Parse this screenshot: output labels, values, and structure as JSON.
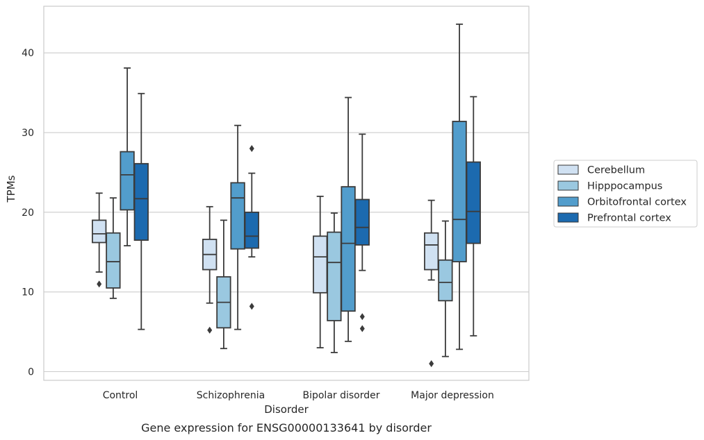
{
  "chart_data": {
    "type": "box",
    "xlabel": "Disorder",
    "ylabel": "TPMs",
    "caption": "Gene expression for ENSG00000133641 by disorder",
    "ylim": [
      -1,
      46
    ],
    "yticks": [
      0,
      10,
      20,
      30,
      40
    ],
    "grid": "horizontal",
    "legend_position": "right",
    "categories": [
      "Control",
      "Schizophrenia",
      "Bipolar disorder",
      "Major depression"
    ],
    "series": [
      {
        "name": "Cerebellum",
        "color": "#d0e1f2",
        "boxes": [
          {
            "whisker_low": 12.5,
            "q1": 16.2,
            "median": 17.3,
            "q3": 19.0,
            "whisker_high": 22.4,
            "outliers": [
              11.0
            ]
          },
          {
            "whisker_low": 8.6,
            "q1": 12.8,
            "median": 14.7,
            "q3": 16.6,
            "whisker_high": 20.7,
            "outliers": [
              5.2
            ]
          },
          {
            "whisker_low": 3.0,
            "q1": 9.9,
            "median": 14.4,
            "q3": 17.0,
            "whisker_high": 22.0,
            "outliers": []
          },
          {
            "whisker_low": 11.5,
            "q1": 12.8,
            "median": 15.9,
            "q3": 17.4,
            "whisker_high": 21.5,
            "outliers": [
              1.0
            ]
          }
        ]
      },
      {
        "name": "Hipppocampus",
        "color": "#9ac8e0",
        "boxes": [
          {
            "whisker_low": 9.2,
            "q1": 10.5,
            "median": 13.8,
            "q3": 17.4,
            "whisker_high": 21.8,
            "outliers": []
          },
          {
            "whisker_low": 2.9,
            "q1": 5.5,
            "median": 8.7,
            "q3": 11.9,
            "whisker_high": 19.0,
            "outliers": []
          },
          {
            "whisker_low": 2.4,
            "q1": 6.4,
            "median": 13.7,
            "q3": 17.5,
            "whisker_high": 19.9,
            "outliers": []
          },
          {
            "whisker_low": 1.9,
            "q1": 8.9,
            "median": 11.2,
            "q3": 14.0,
            "whisker_high": 18.9,
            "outliers": []
          }
        ]
      },
      {
        "name": "Orbitofrontal cortex",
        "color": "#529dcc",
        "boxes": [
          {
            "whisker_low": 15.8,
            "q1": 20.3,
            "median": 24.7,
            "q3": 27.6,
            "whisker_high": 38.1,
            "outliers": []
          },
          {
            "whisker_low": 5.3,
            "q1": 15.4,
            "median": 21.8,
            "q3": 23.7,
            "whisker_high": 30.9,
            "outliers": []
          },
          {
            "whisker_low": 3.8,
            "q1": 7.6,
            "median": 16.1,
            "q3": 23.2,
            "whisker_high": 34.4,
            "outliers": []
          },
          {
            "whisker_low": 2.8,
            "q1": 13.8,
            "median": 19.1,
            "q3": 31.4,
            "whisker_high": 43.6,
            "outliers": []
          }
        ]
      },
      {
        "name": "Prefrontal cortex",
        "color": "#1c6aaf",
        "boxes": [
          {
            "whisker_low": 5.3,
            "q1": 16.5,
            "median": 21.7,
            "q3": 26.1,
            "whisker_high": 34.9,
            "outliers": []
          },
          {
            "whisker_low": 14.4,
            "q1": 15.5,
            "median": 17.0,
            "q3": 20.0,
            "whisker_high": 24.9,
            "outliers": [
              28.0,
              8.2
            ]
          },
          {
            "whisker_low": 12.7,
            "q1": 15.9,
            "median": 18.1,
            "q3": 21.6,
            "whisker_high": 29.8,
            "outliers": [
              6.9,
              5.4
            ]
          },
          {
            "whisker_low": 4.5,
            "q1": 16.1,
            "median": 20.1,
            "q3": 26.3,
            "whisker_high": 34.5,
            "outliers": []
          }
        ]
      }
    ]
  }
}
